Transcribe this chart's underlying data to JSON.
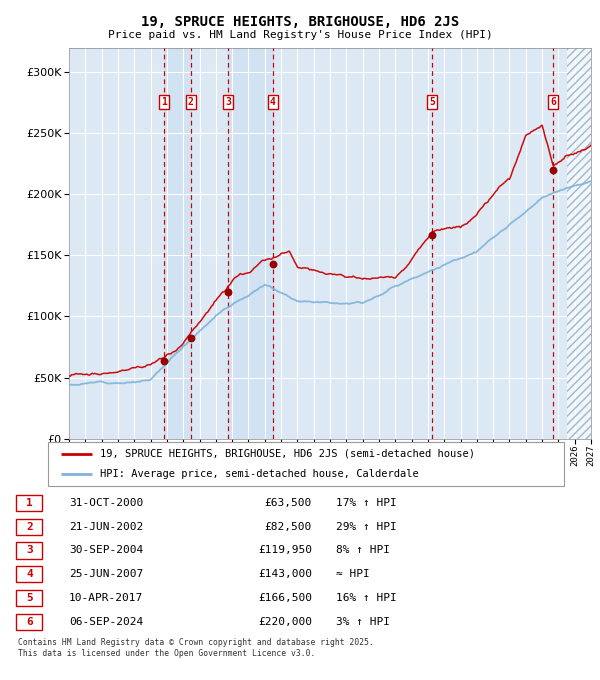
{
  "title": "19, SPRUCE HEIGHTS, BRIGHOUSE, HD6 2JS",
  "subtitle": "Price paid vs. HM Land Registry's House Price Index (HPI)",
  "hpi_label": "HPI: Average price, semi-detached house, Calderdale",
  "property_label": "19, SPRUCE HEIGHTS, BRIGHOUSE, HD6 2JS (semi-detached house)",
  "footer1": "Contains HM Land Registry data © Crown copyright and database right 2025.",
  "footer2": "This data is licensed under the Open Government Licence v3.0.",
  "sales": [
    {
      "num": 1,
      "date": "31-OCT-2000",
      "x": 2000.83,
      "price": 63500,
      "hpi_rel": "17% ↑ HPI"
    },
    {
      "num": 2,
      "date": "21-JUN-2002",
      "x": 2002.47,
      "price": 82500,
      "hpi_rel": "29% ↑ HPI"
    },
    {
      "num": 3,
      "date": "30-SEP-2004",
      "x": 2004.75,
      "price": 119950,
      "hpi_rel": "8% ↑ HPI"
    },
    {
      "num": 4,
      "date": "25-JUN-2007",
      "x": 2007.48,
      "price": 143000,
      "hpi_rel": "≈ HPI"
    },
    {
      "num": 5,
      "date": "10-APR-2017",
      "x": 2017.27,
      "price": 166500,
      "hpi_rel": "16% ↑ HPI"
    },
    {
      "num": 6,
      "date": "06-SEP-2024",
      "x": 2024.68,
      "price": 220000,
      "hpi_rel": "3% ↑ HPI"
    }
  ],
  "xmin": 1995,
  "xmax": 2027,
  "ymin": 0,
  "ymax": 320000,
  "bg_color": "#dce9f5",
  "grid_color": "#ffffff",
  "hpi_line_color": "#7fb3d9",
  "price_line_color": "#cc0000",
  "sale_dot_color": "#990000",
  "sale_box_color": "#cc0000",
  "dashed_line_color": "#cc0000",
  "future_x": 2025.5,
  "hpi_anchors_x": [
    1995,
    2000,
    2004,
    2007,
    2009,
    2013,
    2017,
    2020,
    2024,
    2027
  ],
  "hpi_anchors_y": [
    44000,
    50000,
    105000,
    130000,
    118000,
    120000,
    148000,
    165000,
    205000,
    220000
  ],
  "price_anchors_x": [
    1995,
    2000,
    2000.83,
    2002.0,
    2002.47,
    2004.0,
    2004.75,
    2005.5,
    2007.0,
    2007.48,
    2008.5,
    2009,
    2012,
    2013,
    2015,
    2017.27,
    2019,
    2020,
    2022,
    2023,
    2024.0,
    2024.68,
    2025.5,
    2027
  ],
  "price_anchors_y": [
    51000,
    57000,
    63500,
    73000,
    82500,
    108000,
    119950,
    132000,
    141000,
    143000,
    148000,
    135000,
    128000,
    127000,
    130000,
    166500,
    172000,
    183000,
    210000,
    245000,
    255000,
    220000,
    228000,
    235000
  ]
}
